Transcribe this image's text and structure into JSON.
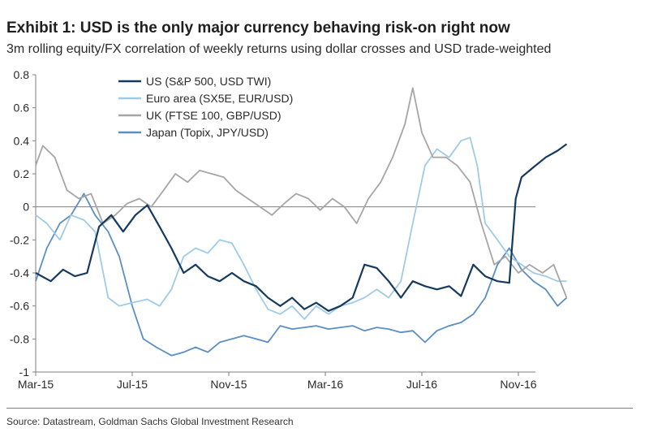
{
  "header": {
    "title": "Exhibit 1: USD is the only major currency behaving risk-on right now",
    "subtitle": "3m rolling equity/FX correlation of weekly returns using dollar crosses and USD trade-weighted"
  },
  "source": "Source: Datastream, Goldman Sachs Global Investment Research",
  "chart_data": {
    "type": "line",
    "title": "",
    "xlabel": "",
    "ylabel": "",
    "x_ticks": [
      "Mar-15",
      "Jul-15",
      "Nov-15",
      "Mar-16",
      "Jul-16",
      "Nov-16"
    ],
    "x_tick_dates": [
      "2015-03",
      "2015-07",
      "2015-11",
      "2016-03",
      "2016-07",
      "2016-11"
    ],
    "y_ticks": [
      "0.8",
      "0.6",
      "0.4",
      "0.2",
      "0",
      "-0.2",
      "-0.4",
      "-0.6",
      "-0.8",
      "-1"
    ],
    "ylim": [
      -1,
      0.8
    ],
    "xlim": [
      "2015-03",
      "2017-01"
    ],
    "grid": false,
    "legend_position": "top-left",
    "colors": {
      "us": "#163a5f",
      "euro": "#9fcbe8",
      "uk": "#a6a6a6",
      "japan": "#5b8fc4",
      "axis": "#7f7f7f"
    },
    "series": [
      {
        "name": "US (S&P 500, USD TWI)",
        "key": "us",
        "color": "#163a5f",
        "points": [
          [
            "2015-03-01",
            -0.4
          ],
          [
            "2015-03-20",
            -0.45
          ],
          [
            "2015-04-05",
            -0.38
          ],
          [
            "2015-04-20",
            -0.42
          ],
          [
            "2015-05-05",
            -0.4
          ],
          [
            "2015-05-20",
            -0.12
          ],
          [
            "2015-06-05",
            -0.05
          ],
          [
            "2015-06-20",
            -0.15
          ],
          [
            "2015-07-05",
            -0.05
          ],
          [
            "2015-07-20",
            0.01
          ],
          [
            "2015-08-05",
            -0.12
          ],
          [
            "2015-08-20",
            -0.25
          ],
          [
            "2015-09-05",
            -0.4
          ],
          [
            "2015-09-20",
            -0.35
          ],
          [
            "2015-10-05",
            -0.42
          ],
          [
            "2015-10-20",
            -0.45
          ],
          [
            "2015-11-05",
            -0.4
          ],
          [
            "2015-11-20",
            -0.45
          ],
          [
            "2015-12-05",
            -0.48
          ],
          [
            "2015-12-20",
            -0.55
          ],
          [
            "2016-01-05",
            -0.6
          ],
          [
            "2016-01-20",
            -0.55
          ],
          [
            "2016-02-05",
            -0.62
          ],
          [
            "2016-02-20",
            -0.58
          ],
          [
            "2016-03-05",
            -0.63
          ],
          [
            "2016-03-20",
            -0.6
          ],
          [
            "2016-04-05",
            -0.55
          ],
          [
            "2016-04-20",
            -0.35
          ],
          [
            "2016-05-05",
            -0.37
          ],
          [
            "2016-05-20",
            -0.45
          ],
          [
            "2016-06-05",
            -0.55
          ],
          [
            "2016-06-20",
            -0.45
          ],
          [
            "2016-07-05",
            -0.48
          ],
          [
            "2016-07-20",
            -0.5
          ],
          [
            "2016-08-05",
            -0.48
          ],
          [
            "2016-08-20",
            -0.54
          ],
          [
            "2016-09-05",
            -0.35
          ],
          [
            "2016-09-20",
            -0.42
          ],
          [
            "2016-10-05",
            -0.45
          ],
          [
            "2016-10-20",
            -0.46
          ],
          [
            "2016-10-28",
            0.05
          ],
          [
            "2016-11-05",
            0.18
          ],
          [
            "2016-11-20",
            0.24
          ],
          [
            "2016-12-05",
            0.3
          ],
          [
            "2016-12-20",
            0.34
          ],
          [
            "2017-01-01",
            0.38
          ]
        ]
      },
      {
        "name": "Euro area (SX5E, EUR/USD)",
        "key": "euro",
        "color": "#9fcbe8",
        "points": [
          [
            "2015-03-01",
            -0.05
          ],
          [
            "2015-03-15",
            -0.1
          ],
          [
            "2015-04-01",
            -0.2
          ],
          [
            "2015-04-15",
            -0.05
          ],
          [
            "2015-05-01",
            -0.08
          ],
          [
            "2015-05-15",
            -0.15
          ],
          [
            "2015-06-01",
            -0.55
          ],
          [
            "2015-06-15",
            -0.6
          ],
          [
            "2015-07-01",
            -0.58
          ],
          [
            "2015-07-20",
            -0.56
          ],
          [
            "2015-08-05",
            -0.6
          ],
          [
            "2015-08-20",
            -0.5
          ],
          [
            "2015-09-05",
            -0.3
          ],
          [
            "2015-09-20",
            -0.25
          ],
          [
            "2015-10-05",
            -0.28
          ],
          [
            "2015-10-20",
            -0.2
          ],
          [
            "2015-11-05",
            -0.22
          ],
          [
            "2015-11-20",
            -0.35
          ],
          [
            "2015-12-05",
            -0.5
          ],
          [
            "2015-12-20",
            -0.62
          ],
          [
            "2016-01-05",
            -0.65
          ],
          [
            "2016-01-20",
            -0.6
          ],
          [
            "2016-02-05",
            -0.68
          ],
          [
            "2016-02-20",
            -0.6
          ],
          [
            "2016-03-05",
            -0.65
          ],
          [
            "2016-03-20",
            -0.6
          ],
          [
            "2016-04-05",
            -0.58
          ],
          [
            "2016-04-20",
            -0.55
          ],
          [
            "2016-05-05",
            -0.5
          ],
          [
            "2016-05-20",
            -0.55
          ],
          [
            "2016-06-05",
            -0.45
          ],
          [
            "2016-06-20",
            -0.1
          ],
          [
            "2016-07-05",
            0.25
          ],
          [
            "2016-07-20",
            0.35
          ],
          [
            "2016-08-05",
            0.3
          ],
          [
            "2016-08-20",
            0.4
          ],
          [
            "2016-09-01",
            0.42
          ],
          [
            "2016-09-10",
            0.25
          ],
          [
            "2016-09-20",
            -0.1
          ],
          [
            "2016-10-05",
            -0.2
          ],
          [
            "2016-10-20",
            -0.3
          ],
          [
            "2016-11-05",
            -0.35
          ],
          [
            "2016-11-20",
            -0.4
          ],
          [
            "2016-12-05",
            -0.42
          ],
          [
            "2016-12-20",
            -0.45
          ],
          [
            "2017-01-01",
            -0.45
          ]
        ]
      },
      {
        "name": "UK (FTSE 100, GBP/USD)",
        "key": "uk",
        "color": "#a6a6a6",
        "points": [
          [
            "2015-03-01",
            0.25
          ],
          [
            "2015-03-10",
            0.37
          ],
          [
            "2015-03-25",
            0.3
          ],
          [
            "2015-04-10",
            0.1
          ],
          [
            "2015-04-25",
            0.05
          ],
          [
            "2015-05-10",
            0.08
          ],
          [
            "2015-05-25",
            -0.1
          ],
          [
            "2015-06-10",
            -0.05
          ],
          [
            "2015-06-25",
            0.02
          ],
          [
            "2015-07-10",
            0.05
          ],
          [
            "2015-07-25",
            0.0
          ],
          [
            "2015-08-10",
            0.1
          ],
          [
            "2015-08-25",
            0.2
          ],
          [
            "2015-09-10",
            0.15
          ],
          [
            "2015-09-25",
            0.22
          ],
          [
            "2015-10-10",
            0.2
          ],
          [
            "2015-10-25",
            0.18
          ],
          [
            "2015-11-10",
            0.1
          ],
          [
            "2015-11-25",
            0.05
          ],
          [
            "2015-12-10",
            0.0
          ],
          [
            "2015-12-25",
            -0.05
          ],
          [
            "2016-01-10",
            0.02
          ],
          [
            "2016-01-25",
            0.08
          ],
          [
            "2016-02-10",
            0.05
          ],
          [
            "2016-02-25",
            -0.02
          ],
          [
            "2016-03-10",
            0.05
          ],
          [
            "2016-03-25",
            0.0
          ],
          [
            "2016-04-10",
            -0.1
          ],
          [
            "2016-04-25",
            0.05
          ],
          [
            "2016-05-10",
            0.15
          ],
          [
            "2016-05-25",
            0.3
          ],
          [
            "2016-06-10",
            0.5
          ],
          [
            "2016-06-20",
            0.72
          ],
          [
            "2016-07-01",
            0.45
          ],
          [
            "2016-07-15",
            0.3
          ],
          [
            "2016-08-01",
            0.3
          ],
          [
            "2016-08-15",
            0.25
          ],
          [
            "2016-09-01",
            0.15
          ],
          [
            "2016-09-15",
            -0.1
          ],
          [
            "2016-10-01",
            -0.35
          ],
          [
            "2016-10-15",
            -0.3
          ],
          [
            "2016-11-01",
            -0.4
          ],
          [
            "2016-11-15",
            -0.35
          ],
          [
            "2016-12-01",
            -0.4
          ],
          [
            "2016-12-15",
            -0.35
          ],
          [
            "2017-01-01",
            -0.55
          ]
        ]
      },
      {
        "name": "Japan (Topix, JPY/USD)",
        "key": "japan",
        "color": "#5b8fc4",
        "points": [
          [
            "2015-03-01",
            -0.45
          ],
          [
            "2015-03-15",
            -0.25
          ],
          [
            "2015-04-01",
            -0.1
          ],
          [
            "2015-04-15",
            -0.05
          ],
          [
            "2015-05-01",
            0.08
          ],
          [
            "2015-05-15",
            -0.05
          ],
          [
            "2015-06-01",
            -0.15
          ],
          [
            "2015-06-15",
            -0.3
          ],
          [
            "2015-07-01",
            -0.6
          ],
          [
            "2015-07-15",
            -0.8
          ],
          [
            "2015-08-01",
            -0.85
          ],
          [
            "2015-08-20",
            -0.9
          ],
          [
            "2015-09-05",
            -0.88
          ],
          [
            "2015-09-20",
            -0.85
          ],
          [
            "2015-10-05",
            -0.88
          ],
          [
            "2015-10-20",
            -0.82
          ],
          [
            "2015-11-05",
            -0.8
          ],
          [
            "2015-11-20",
            -0.78
          ],
          [
            "2015-12-05",
            -0.8
          ],
          [
            "2015-12-20",
            -0.82
          ],
          [
            "2016-01-05",
            -0.72
          ],
          [
            "2016-01-20",
            -0.74
          ],
          [
            "2016-02-05",
            -0.73
          ],
          [
            "2016-02-20",
            -0.72
          ],
          [
            "2016-03-05",
            -0.74
          ],
          [
            "2016-03-20",
            -0.73
          ],
          [
            "2016-04-05",
            -0.72
          ],
          [
            "2016-04-20",
            -0.75
          ],
          [
            "2016-05-05",
            -0.73
          ],
          [
            "2016-05-20",
            -0.74
          ],
          [
            "2016-06-05",
            -0.76
          ],
          [
            "2016-06-20",
            -0.75
          ],
          [
            "2016-07-05",
            -0.82
          ],
          [
            "2016-07-20",
            -0.75
          ],
          [
            "2016-08-05",
            -0.72
          ],
          [
            "2016-08-20",
            -0.7
          ],
          [
            "2016-09-05",
            -0.65
          ],
          [
            "2016-09-20",
            -0.55
          ],
          [
            "2016-10-05",
            -0.35
          ],
          [
            "2016-10-20",
            -0.25
          ],
          [
            "2016-11-05",
            -0.38
          ],
          [
            "2016-11-20",
            -0.45
          ],
          [
            "2016-12-05",
            -0.5
          ],
          [
            "2016-12-20",
            -0.6
          ],
          [
            "2017-01-01",
            -0.55
          ]
        ]
      }
    ]
  }
}
